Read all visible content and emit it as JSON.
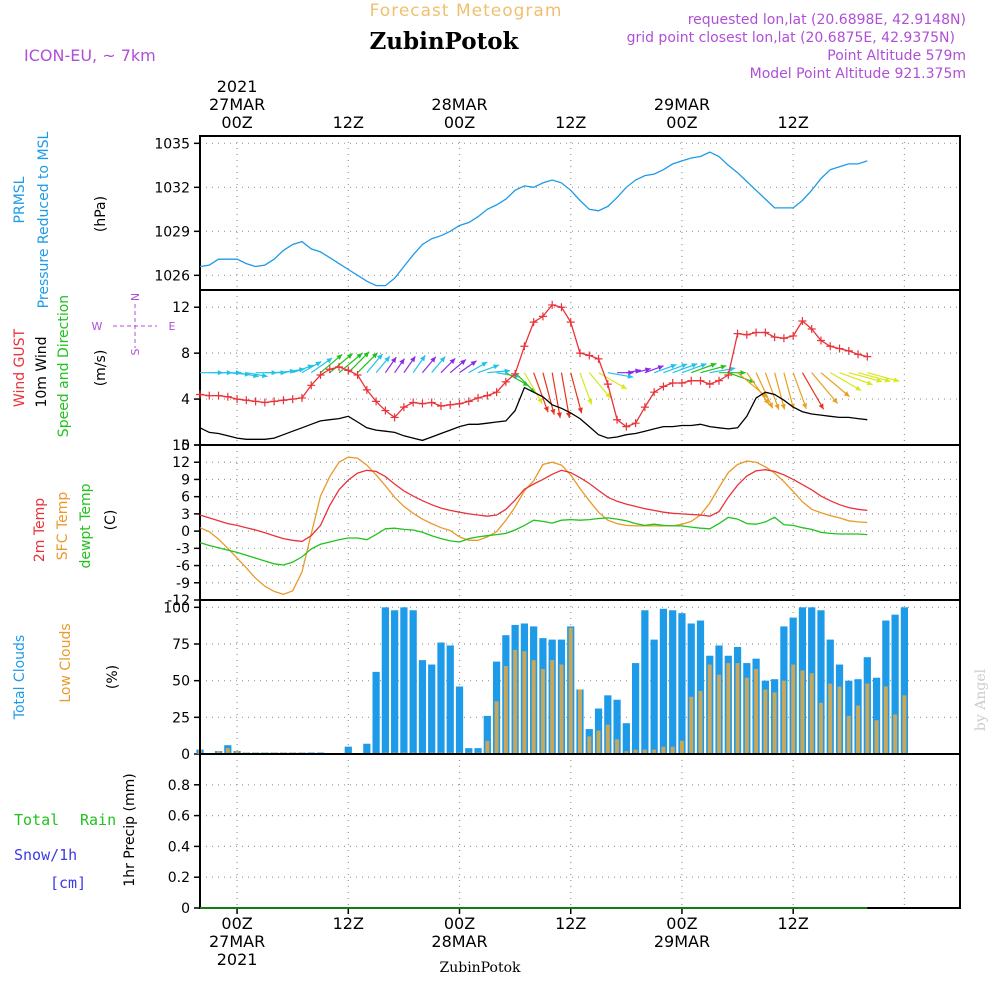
{
  "header": {
    "super_title": "Forecast Meteogram",
    "station": "ZubinPotok",
    "model": "ICON-EU, ~ 7km",
    "requested": "requested lon,lat (20.6898E, 42.9148N)",
    "closest": "grid point closest lon,lat (20.6875E, 42.9375N)",
    "point_alt": "Point Altitude 579m",
    "model_alt": "Model Point Altitude 921.375m",
    "credit": "by Angel"
  },
  "time_axis": {
    "start": "2021-03-27T00:00Z",
    "steps": 64,
    "top_labels": [
      {
        "hour": 0,
        "lines": [
          "2021",
          "27MAR",
          "00Z"
        ]
      },
      {
        "hour": 12,
        "lines": [
          "12Z"
        ]
      },
      {
        "hour": 24,
        "lines": [
          "28MAR",
          "00Z"
        ]
      },
      {
        "hour": 36,
        "lines": [
          "12Z"
        ]
      },
      {
        "hour": 48,
        "lines": [
          "29MAR",
          "00Z"
        ]
      },
      {
        "hour": 60,
        "lines": [
          "12Z"
        ]
      }
    ],
    "bottom_labels": [
      {
        "hour": 0,
        "lines": [
          "00Z",
          "27MAR",
          "2021"
        ]
      },
      {
        "hour": 12,
        "lines": [
          "12Z"
        ]
      },
      {
        "hour": 24,
        "lines": [
          "00Z",
          "28MAR"
        ]
      },
      {
        "hour": 36,
        "lines": [
          "12Z"
        ]
      },
      {
        "hour": 48,
        "lines": [
          "00Z",
          "29MAR"
        ]
      },
      {
        "hour": 60,
        "lines": [
          "12Z"
        ]
      }
    ]
  },
  "colors": {
    "pressure": "#1e9be8",
    "gust": "#e8333a",
    "wind": "#000000",
    "t2m": "#e8333a",
    "sfc": "#e89a2a",
    "dewpt": "#22c21e",
    "total_clouds": "#1e9be8",
    "low_clouds": "#c8a65a",
    "rain": "#22c21e",
    "snow": "#3a3ae8",
    "info": "#b04fd6",
    "supertitle": "#f0c070"
  },
  "panels": {
    "pressure": {
      "labels": [
        "PRMSL",
        "Pressure Reduced to MSL"
      ],
      "unit": "(hPa)",
      "ticks": [
        "1026",
        "1029",
        "1032",
        "1035"
      ]
    },
    "wind": {
      "labels": [
        "Wind GUST",
        "10m Wind",
        "Speed and Direction"
      ],
      "unit": "(m/s)",
      "ticks": [
        "0",
        "4",
        "8",
        "12"
      ],
      "compass": {
        "n": "N",
        "s": "S",
        "w": "W",
        "e": "E"
      }
    },
    "temp": {
      "labels": [
        "2m Temp",
        "SFC Temp",
        "dewpt Temp"
      ],
      "unit": "(C)",
      "ticks": [
        "-12",
        "-9",
        "-6",
        "-3",
        "0",
        "3",
        "6",
        "9",
        "12",
        "15"
      ]
    },
    "clouds": {
      "labels": [
        "Total Clouds",
        "Low Clouds"
      ],
      "unit": "(%)",
      "ticks": [
        "0",
        "25",
        "50",
        "75",
        "100"
      ]
    },
    "precip": {
      "labels": [
        "Total",
        "Rain",
        "Snow/1h",
        "[cm]"
      ],
      "unit": "1hr Precip (mm)",
      "ticks": [
        "0",
        "0.2",
        "0.4",
        "0.6",
        "0.8"
      ]
    }
  },
  "chart_data": {
    "type": "line",
    "title": "Forecast Meteogram ZubinPotok",
    "x_unit": "hours since 2021-03-27 00Z",
    "x": [
      -4,
      -3,
      -2,
      -1,
      0,
      1,
      2,
      3,
      4,
      5,
      6,
      7,
      8,
      9,
      10,
      11,
      12,
      13,
      14,
      15,
      16,
      17,
      18,
      19,
      20,
      21,
      22,
      23,
      24,
      25,
      26,
      27,
      28,
      29,
      30,
      31,
      32,
      33,
      34,
      35,
      36,
      37,
      38,
      39,
      40,
      41,
      42,
      43,
      44,
      45,
      46,
      47,
      48,
      49,
      50,
      51,
      52,
      53,
      54,
      55,
      56,
      57,
      58,
      59,
      60,
      61,
      62,
      63,
      64,
      65,
      66,
      67,
      68,
      69,
      70,
      71,
      72,
      73,
      74,
      75,
      76,
      77,
      78
    ],
    "pressure_hPa": [
      1026.6,
      1026.7,
      1027.1,
      1027.1,
      1027.1,
      1026.8,
      1026.6,
      1026.7,
      1027.1,
      1027.7,
      1028.1,
      1028.3,
      1027.8,
      1027.6,
      1027.2,
      1026.8,
      1026.4,
      1026.0,
      1025.6,
      1025.3,
      1025.3,
      1025.8,
      1026.6,
      1027.4,
      1028.1,
      1028.5,
      1028.7,
      1029.0,
      1029.4,
      1029.6,
      1030.0,
      1030.5,
      1030.8,
      1031.2,
      1031.8,
      1032.1,
      1032.0,
      1032.3,
      1032.5,
      1032.3,
      1031.8,
      1031.1,
      1030.5,
      1030.4,
      1030.7,
      1031.3,
      1032.0,
      1032.5,
      1032.8,
      1032.9,
      1033.2,
      1033.6,
      1033.8,
      1034.0,
      1034.1,
      1034.4,
      1034.1,
      1033.5,
      1033.0,
      1032.4,
      1031.8,
      1031.2,
      1030.6,
      1030.6,
      1030.6,
      1031.1,
      1031.8,
      1032.6,
      1033.2,
      1033.4,
      1033.6,
      1033.6,
      1033.8
    ],
    "wind_10m_ms": [
      1.5,
      1.1,
      1.0,
      0.8,
      0.6,
      0.5,
      0.5,
      0.5,
      0.6,
      0.9,
      1.2,
      1.5,
      1.8,
      2.1,
      2.2,
      2.3,
      2.5,
      2.0,
      1.5,
      1.3,
      1.2,
      1.1,
      0.8,
      0.6,
      0.4,
      0.7,
      1.0,
      1.3,
      1.6,
      1.8,
      1.8,
      1.9,
      2.0,
      2.1,
      3.0,
      5.0,
      4.6,
      4.2,
      3.5,
      3.2,
      2.8,
      2.3,
      1.6,
      0.9,
      0.6,
      0.7,
      0.9,
      1.0,
      1.2,
      1.4,
      1.6,
      1.6,
      1.7,
      1.7,
      1.8,
      1.6,
      1.5,
      1.4,
      1.5,
      2.5,
      4.1,
      4.6,
      4.4,
      3.9,
      3.3,
      2.9,
      2.7,
      2.6,
      2.5,
      2.4,
      2.4,
      2.3,
      2.2
    ],
    "wind_gust_ms": [
      4.4,
      4.3,
      4.3,
      4.2,
      4.0,
      3.9,
      3.8,
      3.7,
      3.8,
      3.9,
      4.0,
      4.1,
      5.2,
      6.1,
      6.6,
      6.8,
      6.5,
      6.1,
      4.8,
      3.8,
      3.0,
      2.4,
      3.3,
      3.7,
      3.6,
      3.7,
      3.4,
      3.5,
      3.6,
      3.8,
      4.1,
      4.3,
      4.6,
      5.5,
      6.2,
      8.6,
      10.7,
      11.2,
      12.2,
      12.0,
      10.7,
      8.0,
      7.8,
      7.5,
      5.3,
      2.2,
      1.6,
      1.9,
      3.3,
      4.6,
      5.1,
      5.4,
      5.4,
      5.6,
      5.6,
      5.3,
      5.6,
      6.1,
      9.7,
      9.6,
      9.8,
      9.8,
      9.4,
      9.3,
      9.5,
      10.8,
      10.1,
      9.1,
      8.6,
      8.4,
      8.2,
      7.9,
      7.7
    ],
    "wind_dir_deg": [
      270,
      270,
      270,
      275,
      280,
      280,
      270,
      270,
      265,
      260,
      250,
      240,
      235,
      230,
      230,
      230,
      225,
      225,
      220,
      220,
      215,
      215,
      215,
      215,
      220,
      220,
      225,
      230,
      235,
      240,
      250,
      265,
      280,
      300,
      315,
      330,
      340,
      345,
      350,
      350,
      345,
      340,
      320,
      300,
      280,
      270,
      260,
      255,
      250,
      250,
      250,
      250,
      250,
      250,
      255,
      260,
      270,
      290,
      310,
      325,
      335,
      340,
      345,
      345,
      340,
      330,
      320,
      310,
      300,
      290,
      285,
      285,
      285
    ],
    "temp_2m_C": [
      2.8,
      2.3,
      1.8,
      1.3,
      1.0,
      0.6,
      0.2,
      -0.3,
      -0.8,
      -1.3,
      -1.6,
      -1.8,
      -0.8,
      1.0,
      4.5,
      7.2,
      8.9,
      10.1,
      10.6,
      10.4,
      9.5,
      8.2,
      7.0,
      6.1,
      5.3,
      4.6,
      4.0,
      3.6,
      3.3,
      3.0,
      2.8,
      2.6,
      2.8,
      3.8,
      5.4,
      7.3,
      8.2,
      9.0,
      9.9,
      10.6,
      10.2,
      9.3,
      8.3,
      7.1,
      5.9,
      5.2,
      4.7,
      4.3,
      3.9,
      3.6,
      3.3,
      3.1,
      3.0,
      2.9,
      2.8,
      2.6,
      3.4,
      5.9,
      8.0,
      9.6,
      10.5,
      10.7,
      10.4,
      9.8,
      9.0,
      8.1,
      7.2,
      6.1,
      5.3,
      4.6,
      4.1,
      3.8,
      3.6
    ],
    "temp_sfc_C": [
      0.6,
      -0.1,
      -1.4,
      -3.0,
      -4.7,
      -6.4,
      -8.2,
      -9.6,
      -10.5,
      -11.0,
      -10.4,
      -7.1,
      -0.5,
      6.1,
      9.5,
      12.0,
      12.9,
      12.7,
      11.5,
      9.8,
      7.9,
      5.9,
      4.3,
      3.1,
      2.1,
      1.3,
      0.6,
      0.1,
      -1.0,
      -1.6,
      -1.6,
      -1.0,
      -0.1,
      1.9,
      4.2,
      7.0,
      8.8,
      11.6,
      12.0,
      11.5,
      9.8,
      7.4,
      5.3,
      3.3,
      1.9,
      1.3,
      1.0,
      0.9,
      0.9,
      0.9,
      0.9,
      0.9,
      1.2,
      1.7,
      2.8,
      4.9,
      7.6,
      10.2,
      11.6,
      12.2,
      12.0,
      11.2,
      10.1,
      8.6,
      6.9,
      5.1,
      3.8,
      3.2,
      2.7,
      2.3,
      1.8,
      1.6,
      1.5
    ],
    "dewpt_C": [
      -2.0,
      -2.5,
      -2.9,
      -3.3,
      -3.7,
      -4.2,
      -4.7,
      -5.2,
      -5.7,
      -5.9,
      -5.4,
      -4.5,
      -3.1,
      -2.3,
      -1.9,
      -1.5,
      -1.2,
      -1.2,
      -1.5,
      -0.6,
      0.4,
      0.5,
      0.3,
      0.2,
      -0.2,
      -0.8,
      -1.3,
      -1.7,
      -1.9,
      -1.3,
      -1.0,
      -0.8,
      -0.6,
      -0.4,
      0.2,
      1.0,
      1.9,
      1.7,
      1.4,
      1.9,
      2.0,
      1.9,
      2.0,
      2.2,
      2.3,
      2.1,
      1.8,
      1.3,
      1.0,
      1.2,
      1.0,
      0.9,
      0.9,
      0.7,
      0.5,
      0.4,
      1.3,
      2.4,
      2.1,
      1.3,
      1.2,
      1.6,
      2.4,
      1.1,
      1.0,
      0.6,
      0.3,
      -0.2,
      -0.4,
      -0.5,
      -0.5,
      -0.5,
      -0.6
    ],
    "total_clouds_pct": [
      3,
      0,
      2,
      6,
      2,
      1,
      1,
      1,
      1,
      1,
      1,
      1,
      1,
      1,
      0,
      0,
      5,
      0,
      7,
      56,
      100,
      98,
      100,
      98,
      64,
      61,
      76,
      74,
      46,
      4,
      4,
      26,
      63,
      81,
      88,
      89,
      87,
      79,
      78,
      78,
      87,
      44,
      17,
      31,
      40,
      37,
      21,
      62,
      98,
      78,
      99,
      98,
      96,
      89,
      91,
      67,
      74,
      67,
      73,
      62,
      65,
      50,
      51,
      87,
      93,
      100,
      100,
      98,
      78,
      61,
      50,
      51,
      66,
      52,
      91,
      95,
      100
    ],
    "low_clouds_pct": [
      3,
      0,
      2,
      4,
      2,
      1,
      1,
      1,
      1,
      1,
      1,
      1,
      0,
      0,
      0,
      0,
      0,
      0,
      0,
      0,
      1,
      1,
      1,
      1,
      1,
      1,
      1,
      1,
      1,
      1,
      1,
      9,
      36,
      60,
      71,
      70,
      64,
      58,
      64,
      61,
      86,
      44,
      12,
      16,
      20,
      10,
      2,
      3,
      3,
      3,
      5,
      5,
      9,
      39,
      43,
      61,
      54,
      62,
      62,
      52,
      58,
      44,
      42,
      50,
      61,
      57,
      55,
      35,
      48,
      46,
      26,
      33,
      48,
      23,
      46,
      27,
      40
    ],
    "cloud_x": [
      -4,
      -3,
      -2,
      -1,
      0,
      1,
      2,
      3,
      4,
      5,
      6,
      7,
      8,
      9,
      10,
      11,
      12,
      13,
      14,
      15,
      16,
      17,
      18,
      19,
      20,
      21,
      22,
      23,
      24,
      25,
      26,
      27,
      28,
      29,
      30,
      31,
      32,
      33,
      34,
      35,
      36,
      37,
      38,
      39,
      40,
      41,
      42,
      43,
      44,
      45,
      46,
      47,
      48,
      49,
      50,
      51,
      52,
      53,
      54,
      55,
      56,
      57,
      58,
      59,
      60,
      61,
      62,
      63,
      64,
      65,
      66,
      67,
      68,
      69,
      70,
      71,
      72
    ],
    "precip_mm": [
      0,
      0,
      0,
      0,
      0,
      0,
      0,
      0,
      0,
      0,
      0,
      0,
      0,
      0,
      0,
      0,
      0,
      0,
      0,
      0,
      0,
      0,
      0,
      0,
      0,
      0,
      0,
      0,
      0,
      0,
      0,
      0,
      0,
      0,
      0,
      0,
      0,
      0,
      0,
      0,
      0,
      0,
      0,
      0,
      0,
      0,
      0,
      0,
      0,
      0,
      0,
      0,
      0,
      0,
      0,
      0,
      0,
      0,
      0,
      0,
      0,
      0,
      0,
      0,
      0,
      0,
      0,
      0,
      0,
      0,
      0,
      0,
      0
    ],
    "ylim": {
      "pressure": [
        1025,
        1035.5
      ],
      "wind": [
        0,
        13.5
      ],
      "temp": [
        -12,
        15
      ],
      "clouds": [
        0,
        105
      ],
      "precip": [
        0,
        1.0
      ]
    }
  }
}
